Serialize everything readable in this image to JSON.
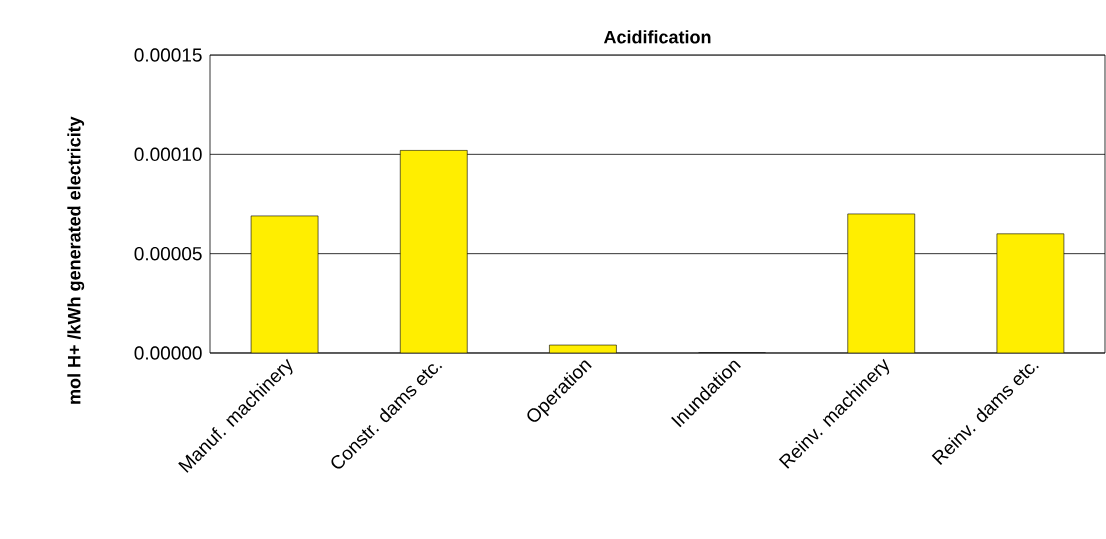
{
  "chart_data": {
    "type": "bar",
    "title": "Acidification",
    "ylabel": "mol H+ /kWh generated electricity",
    "categories": [
      "Manuf. machinery",
      "Constr. dams etc.",
      "Operation",
      "Inundation",
      "Reinv. machinery",
      "Reinv. dams etc."
    ],
    "values": [
      6.9e-05,
      0.000102,
      4e-06,
      0,
      7e-05,
      6e-05
    ],
    "color": "#ffee00",
    "ylim": [
      0,
      0.00015
    ],
    "yticks": [
      {
        "value": 0,
        "label": "0.00000"
      },
      {
        "value": 5e-05,
        "label": "0.00005"
      },
      {
        "value": 0.0001,
        "label": "0.00010"
      },
      {
        "value": 0.00015,
        "label": "0.00015"
      }
    ],
    "grid": "y"
  }
}
